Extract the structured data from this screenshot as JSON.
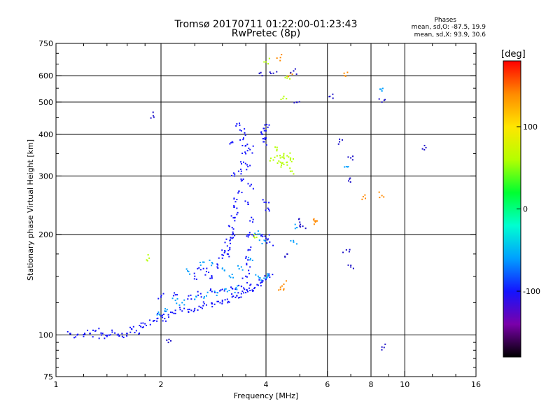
{
  "header": {
    "title": "Tromsø 20170711 01:22:00-01:23:43",
    "subtitle": "RwPretec (8p)",
    "stats_heading": "Phases",
    "stats_o": "mean, sd,O: -87.5, 19.9",
    "stats_x": "mean, sd,X:  93.9, 30.6"
  },
  "colorbar": {
    "unit": "[deg]",
    "ticks": [
      100,
      0,
      -100
    ],
    "range": [
      -180,
      180
    ],
    "colormap": [
      "#000000",
      "#7a00aa",
      "#1414ff",
      "#00a0ff",
      "#00ffd0",
      "#00ff30",
      "#b4ff00",
      "#ffe600",
      "#ff8a00",
      "#ff0000"
    ]
  },
  "chart_data": {
    "type": "scatter",
    "title": "Tromsø 20170711 01:22:00-01:23:43",
    "subtitle": "RwPretec (8p)",
    "xlabel": "Frequency [MHz]",
    "ylabel": "Stationary phase Virtual Height [km]",
    "x_scale": "log",
    "y_scale": "log",
    "xlim": [
      1,
      16
    ],
    "ylim": [
      75,
      750
    ],
    "x_ticks": [
      1,
      2,
      4,
      6,
      8,
      10,
      16
    ],
    "y_ticks": [
      75,
      100,
      200,
      300,
      400,
      500,
      600,
      750
    ],
    "grid": true,
    "series": [
      {
        "values": [
          [
            1.1,
            101
          ],
          [
            1.15,
            100
          ],
          [
            1.2,
            99
          ],
          [
            1.25,
            101
          ],
          [
            1.3,
            103
          ],
          [
            1.35,
            100
          ],
          [
            1.4,
            99
          ],
          [
            1.45,
            102
          ],
          [
            1.5,
            100
          ],
          [
            1.55,
            99
          ],
          [
            1.6,
            101
          ],
          [
            1.65,
            104
          ],
          [
            1.7,
            103
          ],
          [
            1.75,
            106
          ],
          [
            1.8,
            108
          ],
          [
            1.9,
            110
          ],
          [
            1.95,
            112
          ],
          [
            2.0,
            114
          ],
          [
            2.05,
            112
          ],
          [
            2.1,
            115
          ],
          [
            2.2,
            116
          ],
          [
            2.3,
            118
          ],
          [
            2.4,
            117
          ],
          [
            2.5,
            120
          ],
          [
            2.6,
            121
          ],
          [
            2.7,
            123
          ],
          [
            2.8,
            124
          ],
          [
            2.9,
            126
          ],
          [
            3.0,
            127
          ],
          [
            3.1,
            128
          ],
          [
            3.2,
            130
          ],
          [
            3.3,
            131
          ],
          [
            3.4,
            133
          ],
          [
            3.5,
            134
          ],
          [
            3.6,
            136
          ],
          [
            3.7,
            138
          ],
          [
            3.8,
            141
          ],
          [
            3.9,
            144
          ],
          [
            4.0,
            147
          ],
          [
            4.1,
            149
          ],
          [
            2.0,
            130
          ],
          [
            2.2,
            132
          ],
          [
            2.4,
            131
          ],
          [
            2.6,
            133
          ],
          [
            2.8,
            135
          ],
          [
            3.0,
            137
          ],
          [
            3.2,
            138
          ],
          [
            3.4,
            140
          ],
          [
            3.6,
            141
          ],
          [
            2.5,
            150
          ],
          [
            2.6,
            157
          ],
          [
            2.7,
            155
          ],
          [
            2.8,
            148
          ],
          [
            2.9,
            160
          ],
          [
            3.0,
            170
          ],
          [
            3.05,
            178
          ],
          [
            3.1,
            185
          ],
          [
            3.15,
            192
          ],
          [
            3.2,
            200
          ],
          [
            3.2,
            210
          ],
          [
            3.25,
            225
          ],
          [
            3.3,
            240
          ],
          [
            3.3,
            255
          ],
          [
            3.35,
            270
          ],
          [
            3.4,
            290
          ],
          [
            3.4,
            310
          ],
          [
            3.45,
            330
          ],
          [
            3.5,
            350
          ],
          [
            3.5,
            370
          ],
          [
            3.45,
            390
          ],
          [
            3.4,
            410
          ],
          [
            3.3,
            430
          ],
          [
            3.2,
            380
          ],
          [
            3.25,
            300
          ],
          [
            3.3,
            230
          ],
          [
            3.2,
            195
          ],
          [
            3.1,
            175
          ],
          [
            3.6,
            160
          ],
          [
            3.6,
            180
          ],
          [
            3.65,
            200
          ],
          [
            3.6,
            220
          ],
          [
            3.55,
            250
          ],
          [
            3.6,
            280
          ],
          [
            3.55,
            320
          ],
          [
            3.6,
            360
          ],
          [
            3.55,
            200
          ],
          [
            3.5,
            170
          ],
          [
            3.5,
            150
          ],
          [
            3.9,
            400
          ],
          [
            4.0,
            410
          ],
          [
            4.05,
            420
          ],
          [
            4.0,
            390
          ],
          [
            3.95,
            380
          ],
          [
            4.0,
            250
          ],
          [
            4.05,
            240
          ],
          [
            3.9,
            200
          ],
          [
            4.0,
            195
          ],
          [
            4.1,
            190
          ]
        ],
        "color": "#1414ff"
      },
      {
        "values": [
          [
            2.2,
            127
          ],
          [
            2.3,
            125
          ],
          [
            2.5,
            128
          ],
          [
            2.7,
            131
          ],
          [
            2.9,
            134
          ],
          [
            3.1,
            135
          ],
          [
            3.3,
            137
          ],
          [
            2.4,
            155
          ],
          [
            2.6,
            162
          ],
          [
            2.8,
            165
          ],
          [
            3.0,
            158
          ],
          [
            3.2,
            152
          ],
          [
            3.4,
            160
          ],
          [
            3.6,
            168
          ],
          [
            3.8,
            150
          ],
          [
            1.95,
            115
          ],
          [
            2.05,
            118
          ],
          [
            3.95,
            148
          ],
          [
            4.05,
            150
          ],
          [
            3.8,
            205
          ],
          [
            3.9,
            188
          ],
          [
            4.8,
            190
          ],
          [
            4.9,
            210
          ],
          [
            6.8,
            320
          ],
          [
            8.6,
            540
          ]
        ],
        "color": "#00a0ff"
      },
      {
        "values": [
          [
            4.4,
            340
          ],
          [
            4.5,
            350
          ],
          [
            4.6,
            345
          ],
          [
            4.7,
            335
          ],
          [
            4.5,
            325
          ],
          [
            4.6,
            330
          ],
          [
            4.3,
            360
          ],
          [
            4.4,
            330
          ],
          [
            4.2,
            335
          ],
          [
            4.7,
            310
          ],
          [
            4.5,
            520
          ],
          [
            4.6,
            590
          ],
          [
            1.85,
            170
          ],
          [
            3.7,
            200
          ],
          [
            4.0,
            660
          ]
        ],
        "color": "#b4ff00"
      },
      {
        "values": [
          [
            4.4,
            680
          ],
          [
            4.7,
            610
          ],
          [
            5.6,
            220
          ],
          [
            5.5,
            215
          ],
          [
            6.7,
            610
          ],
          [
            4.4,
            137
          ],
          [
            4.5,
            142
          ],
          [
            8.6,
            262
          ],
          [
            7.6,
            260
          ]
        ],
        "color": "#ff8a00"
      },
      {
        "values": [
          [
            4.8,
            620
          ],
          [
            4.9,
            500
          ],
          [
            5.0,
            218
          ],
          [
            5.1,
            212
          ],
          [
            8.6,
            500
          ],
          [
            11.5,
            365
          ],
          [
            8.6,
            92
          ],
          [
            6.8,
            180
          ],
          [
            7.0,
            160
          ],
          [
            6.9,
            290
          ],
          [
            7.0,
            340
          ],
          [
            6.1,
            520
          ],
          [
            6.5,
            380
          ],
          [
            1.9,
            455
          ],
          [
            2.1,
            95
          ],
          [
            4.2,
            610
          ],
          [
            3.9,
            600
          ],
          [
            4.6,
            175
          ]
        ],
        "color": "#1c10c8"
      }
    ]
  }
}
